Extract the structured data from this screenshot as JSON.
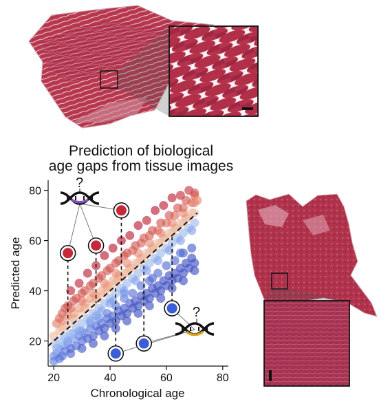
{
  "chart_data": {
    "type": "scatter",
    "title_lines": [
      "Prediction of biological",
      "age gaps from tissue images"
    ],
    "xlabel": "Chronological age",
    "ylabel": "Predicted age",
    "xlim": [
      18,
      82
    ],
    "ylim": [
      10,
      84
    ],
    "xticks": [
      20,
      40,
      60,
      80
    ],
    "yticks": [
      20,
      40,
      60,
      80
    ],
    "diagonal": "dashed black line y = x",
    "colormap": "coolwarm: blue (predicted < chronological) to red (predicted > chronological)",
    "points": [
      [
        20,
        14
      ],
      [
        21,
        15
      ],
      [
        22,
        17
      ],
      [
        22,
        13
      ],
      [
        23,
        18
      ],
      [
        24,
        16
      ],
      [
        25,
        19
      ],
      [
        26,
        17
      ],
      [
        27,
        21
      ],
      [
        28,
        18
      ],
      [
        29,
        22
      ],
      [
        30,
        20
      ],
      [
        31,
        23
      ],
      [
        32,
        21
      ],
      [
        33,
        25
      ],
      [
        34,
        22
      ],
      [
        35,
        26
      ],
      [
        36,
        24
      ],
      [
        37,
        27
      ],
      [
        38,
        25
      ],
      [
        39,
        29
      ],
      [
        40,
        27
      ],
      [
        41,
        30
      ],
      [
        42,
        28
      ],
      [
        43,
        32
      ],
      [
        44,
        30
      ],
      [
        45,
        33
      ],
      [
        46,
        31
      ],
      [
        47,
        35
      ],
      [
        48,
        33
      ],
      [
        49,
        36
      ],
      [
        50,
        34
      ],
      [
        51,
        38
      ],
      [
        52,
        36
      ],
      [
        53,
        39
      ],
      [
        54,
        37
      ],
      [
        55,
        41
      ],
      [
        56,
        39
      ],
      [
        57,
        42
      ],
      [
        58,
        40
      ],
      [
        59,
        44
      ],
      [
        60,
        42
      ],
      [
        61,
        46
      ],
      [
        62,
        44
      ],
      [
        63,
        47
      ],
      [
        64,
        45
      ],
      [
        65,
        49
      ],
      [
        66,
        47
      ],
      [
        67,
        51
      ],
      [
        68,
        49
      ],
      [
        69,
        53
      ],
      [
        70,
        51
      ],
      [
        69,
        57
      ],
      [
        66,
        55
      ],
      [
        63,
        52
      ],
      [
        60,
        50
      ],
      [
        57,
        47
      ],
      [
        54,
        44
      ],
      [
        51,
        42
      ],
      [
        48,
        39
      ],
      [
        45,
        37
      ],
      [
        42,
        34
      ],
      [
        39,
        31
      ],
      [
        36,
        29
      ],
      [
        33,
        27
      ],
      [
        30,
        24
      ],
      [
        27,
        23
      ],
      [
        24,
        21
      ],
      [
        21,
        19
      ],
      [
        20,
        19
      ],
      [
        22,
        20
      ],
      [
        24,
        22
      ],
      [
        26,
        23
      ],
      [
        28,
        25
      ],
      [
        30,
        27
      ],
      [
        32,
        29
      ],
      [
        34,
        31
      ],
      [
        36,
        33
      ],
      [
        38,
        35
      ],
      [
        40,
        37
      ],
      [
        42,
        39
      ],
      [
        44,
        41
      ],
      [
        46,
        43
      ],
      [
        48,
        45
      ],
      [
        50,
        47
      ],
      [
        52,
        49
      ],
      [
        54,
        51
      ],
      [
        56,
        53
      ],
      [
        58,
        55
      ],
      [
        60,
        57
      ],
      [
        62,
        59
      ],
      [
        64,
        61
      ],
      [
        66,
        63
      ],
      [
        68,
        65
      ],
      [
        70,
        67
      ],
      [
        21,
        17
      ],
      [
        25,
        20
      ],
      [
        29,
        24
      ],
      [
        33,
        28
      ],
      [
        37,
        32
      ],
      [
        41,
        36
      ],
      [
        45,
        40
      ],
      [
        49,
        44
      ],
      [
        53,
        48
      ],
      [
        57,
        52
      ],
      [
        61,
        56
      ],
      [
        65,
        60
      ],
      [
        69,
        64
      ],
      [
        20,
        22
      ],
      [
        22,
        24
      ],
      [
        24,
        26
      ],
      [
        26,
        27
      ],
      [
        28,
        29
      ],
      [
        30,
        31
      ],
      [
        32,
        33
      ],
      [
        34,
        35
      ],
      [
        36,
        37
      ],
      [
        38,
        39
      ],
      [
        40,
        41
      ],
      [
        42,
        43
      ],
      [
        44,
        45
      ],
      [
        46,
        47
      ],
      [
        48,
        49
      ],
      [
        50,
        51
      ],
      [
        52,
        53
      ],
      [
        54,
        55
      ],
      [
        56,
        57
      ],
      [
        58,
        59
      ],
      [
        60,
        61
      ],
      [
        62,
        63
      ],
      [
        64,
        65
      ],
      [
        66,
        67
      ],
      [
        68,
        69
      ],
      [
        70,
        71
      ],
      [
        23,
        25
      ],
      [
        27,
        29
      ],
      [
        31,
        33
      ],
      [
        35,
        37
      ],
      [
        39,
        41
      ],
      [
        43,
        45
      ],
      [
        47,
        49
      ],
      [
        51,
        53
      ],
      [
        55,
        57
      ],
      [
        59,
        61
      ],
      [
        63,
        65
      ],
      [
        67,
        69
      ],
      [
        21,
        27
      ],
      [
        23,
        28
      ],
      [
        25,
        30
      ],
      [
        27,
        31
      ],
      [
        29,
        33
      ],
      [
        31,
        35
      ],
      [
        33,
        37
      ],
      [
        35,
        38
      ],
      [
        37,
        40
      ],
      [
        39,
        42
      ],
      [
        41,
        44
      ],
      [
        43,
        46
      ],
      [
        45,
        47
      ],
      [
        47,
        49
      ],
      [
        49,
        51
      ],
      [
        51,
        53
      ],
      [
        53,
        55
      ],
      [
        55,
        57
      ],
      [
        57,
        59
      ],
      [
        59,
        61
      ],
      [
        61,
        63
      ],
      [
        63,
        65
      ],
      [
        65,
        67
      ],
      [
        67,
        69
      ],
      [
        69,
        71
      ],
      [
        22,
        29
      ],
      [
        26,
        33
      ],
      [
        30,
        36
      ],
      [
        34,
        39
      ],
      [
        38,
        43
      ],
      [
        42,
        47
      ],
      [
        46,
        51
      ],
      [
        50,
        55
      ],
      [
        54,
        59
      ],
      [
        58,
        63
      ],
      [
        62,
        67
      ],
      [
        66,
        71
      ],
      [
        70,
        75
      ],
      [
        24,
        33
      ],
      [
        27,
        36
      ],
      [
        30,
        39
      ],
      [
        33,
        42
      ],
      [
        36,
        45
      ],
      [
        39,
        48
      ],
      [
        42,
        51
      ],
      [
        45,
        54
      ],
      [
        48,
        56
      ],
      [
        51,
        59
      ],
      [
        54,
        62
      ],
      [
        57,
        64
      ],
      [
        60,
        67
      ],
      [
        63,
        70
      ],
      [
        66,
        73
      ],
      [
        69,
        75
      ],
      [
        70,
        78
      ],
      [
        67,
        76
      ],
      [
        64,
        73
      ],
      [
        61,
        70
      ],
      [
        58,
        67
      ],
      [
        55,
        64
      ],
      [
        52,
        61
      ],
      [
        49,
        58
      ],
      [
        46,
        55
      ],
      [
        43,
        52
      ],
      [
        40,
        49
      ],
      [
        37,
        46
      ],
      [
        34,
        43
      ],
      [
        31,
        40
      ],
      [
        28,
        37
      ],
      [
        25,
        34
      ],
      [
        23,
        31
      ],
      [
        68,
        80
      ],
      [
        62,
        77
      ],
      [
        56,
        72
      ],
      [
        50,
        66
      ],
      [
        44,
        60
      ],
      [
        38,
        54
      ],
      [
        32,
        47
      ],
      [
        26,
        40
      ],
      [
        29,
        43
      ],
      [
        35,
        50
      ],
      [
        41,
        57
      ],
      [
        47,
        62
      ],
      [
        53,
        68
      ],
      [
        59,
        74
      ],
      [
        65,
        78
      ],
      [
        70,
        79
      ],
      [
        71,
        76
      ],
      [
        20,
        12
      ],
      [
        23,
        14
      ],
      [
        26,
        15
      ],
      [
        30,
        17
      ],
      [
        34,
        19
      ],
      [
        38,
        22
      ],
      [
        42,
        25
      ],
      [
        46,
        28
      ],
      [
        50,
        31
      ],
      [
        54,
        34
      ],
      [
        58,
        37
      ],
      [
        62,
        41
      ],
      [
        66,
        44
      ],
      [
        70,
        48
      ],
      [
        40,
        35
      ],
      [
        55,
        45
      ],
      [
        65,
        55
      ],
      [
        35,
        30
      ],
      [
        28,
        27
      ],
      [
        45,
        39
      ]
    ],
    "highlighted": [
      {
        "x": 25,
        "y": 55,
        "group": "above"
      },
      {
        "x": 35,
        "y": 58,
        "group": "above"
      },
      {
        "x": 44,
        "y": 72,
        "group": "above"
      },
      {
        "x": 42,
        "y": 15,
        "group": "below"
      },
      {
        "x": 52,
        "y": 19,
        "group": "below"
      },
      {
        "x": 62,
        "y": 33,
        "group": "below"
      }
    ],
    "question_mark": "?"
  },
  "colors": {
    "tissue_dark": "#8a1e35",
    "tissue_mid": "#b83b55",
    "tissue_light": "#d9808f",
    "dna_top_accent": "#8a4fc4",
    "dna_bottom_accent": "#d9a41e",
    "high_red": "#c62a3a",
    "low_blue": "#3b5ed6"
  }
}
